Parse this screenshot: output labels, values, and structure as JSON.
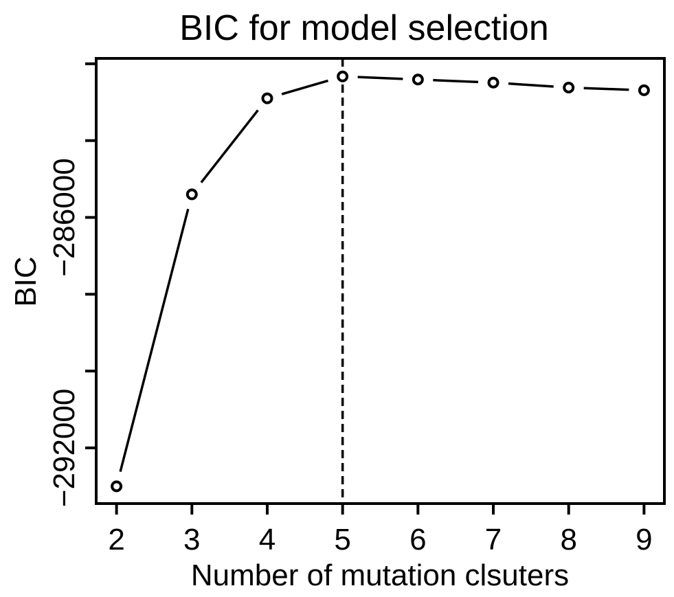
{
  "chart_data": {
    "type": "line",
    "title": "BIC for model selection",
    "xlabel": "Number of mutation clsuters",
    "ylabel": "BIC",
    "x": [
      2,
      3,
      4,
      5,
      6,
      7,
      8,
      9
    ],
    "series": [
      {
        "values": [
          -293000,
          -285400,
          -282900,
          -282330,
          -282410,
          -282490,
          -282620,
          -282690
        ]
      }
    ],
    "xticks": [
      2,
      3,
      4,
      5,
      6,
      7,
      8,
      9
    ],
    "xtick_labels": [
      "2",
      "3",
      "4",
      "5",
      "6",
      "7",
      "8",
      "9"
    ],
    "yticks": [
      -292000,
      -290000,
      -288000,
      -286000,
      -284000,
      -282000
    ],
    "ytick_labels": [
      "−292000",
      "",
      "",
      "−286000",
      "",
      ""
    ],
    "xlim": [
      1.73,
      9.27
    ],
    "ylim": [
      -293450,
      -281860
    ],
    "marker": "open-circle",
    "line_style": "broken-line",
    "reference_vline": 5,
    "grid": false,
    "legend": "none"
  }
}
